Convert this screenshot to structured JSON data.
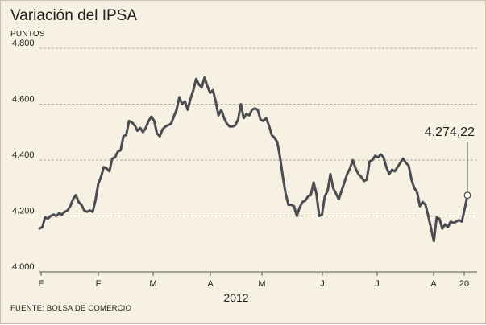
{
  "chart_data": {
    "type": "line",
    "title": "Variación del IPSA",
    "ylabel": "PUNTOS",
    "xlabel": "2012",
    "source": "FUENTE: BOLSA DE COMERCIO",
    "ylim": [
      4000,
      4800
    ],
    "yticks": [
      "4.800",
      "4.600",
      "4.400",
      "4.200",
      "4.000"
    ],
    "ytick_values": [
      4800,
      4600,
      4400,
      4200,
      4000
    ],
    "xticks": [
      "E",
      "F",
      "M",
      "A",
      "M",
      "J",
      "J",
      "A",
      "20"
    ],
    "grid": true,
    "annotation": "4.274,22",
    "series": [
      {
        "color": "#4a4d51",
        "values": [
          4155,
          4160,
          4195,
          4190,
          4200,
          4205,
          4200,
          4210,
          4205,
          4215,
          4220,
          4235,
          4260,
          4275,
          4250,
          4240,
          4220,
          4215,
          4220,
          4215,
          4255,
          4315,
          4340,
          4375,
          4370,
          4360,
          4405,
          4410,
          4430,
          4435,
          4485,
          4490,
          4540,
          4535,
          4525,
          4505,
          4515,
          4500,
          4515,
          4540,
          4555,
          4540,
          4495,
          4485,
          4510,
          4520,
          4525,
          4530,
          4555,
          4580,
          4625,
          4600,
          4610,
          4580,
          4620,
          4650,
          4690,
          4670,
          4660,
          4695,
          4665,
          4640,
          4650,
          4610,
          4560,
          4580,
          4550,
          4530,
          4520,
          4520,
          4525,
          4545,
          4600,
          4550,
          4565,
          4560,
          4580,
          4585,
          4580,
          4545,
          4540,
          4550,
          4525,
          4490,
          4480,
          4465,
          4410,
          4340,
          4280,
          4240,
          4240,
          4235,
          4200,
          4230,
          4250,
          4255,
          4270,
          4275,
          4320,
          4280,
          4200,
          4205,
          4270,
          4290,
          4350,
          4300,
          4280,
          4260,
          4290,
          4320,
          4350,
          4370,
          4400,
          4370,
          4350,
          4340,
          4325,
          4330,
          4395,
          4400,
          4415,
          4410,
          4420,
          4410,
          4375,
          4350,
          4365,
          4360,
          4375,
          4390,
          4405,
          4390,
          4380,
          4330,
          4300,
          4285,
          4235,
          4250,
          4240,
          4200,
          4155,
          4110,
          4195,
          4190,
          4155,
          4170,
          4160,
          4180,
          4175,
          4180,
          4185,
          4180,
          4225,
          4274.22
        ]
      }
    ]
  }
}
